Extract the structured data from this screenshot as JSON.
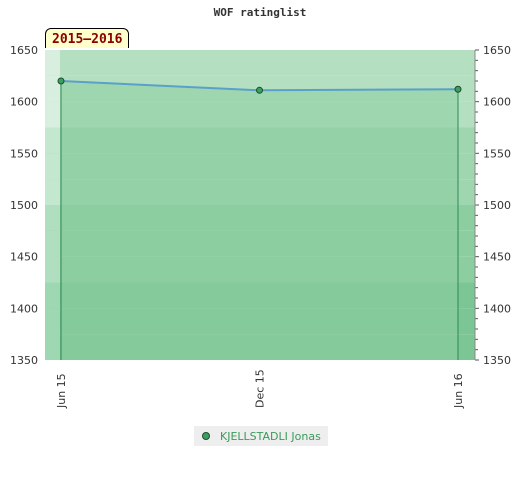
{
  "chart_data": {
    "type": "area",
    "title": "WOF ratinglist",
    "period_label": "2015–2016",
    "x_tick_labels": [
      "Jun 15",
      "Dec 15",
      "Jun 16"
    ],
    "y_ticks": [
      1350,
      1400,
      1450,
      1500,
      1550,
      1600,
      1650
    ],
    "ylim": [
      1350,
      1650
    ],
    "grid": true,
    "legend_position": "bottom",
    "series": [
      {
        "name": "KJELLSTADLI Jonas",
        "points": [
          {
            "x": "Jun 15",
            "y": 1620
          },
          {
            "x": "Dec 15",
            "y": 1611
          },
          {
            "x": "Jun 16",
            "y": 1612
          }
        ]
      }
    ],
    "colors": {
      "line": "#5aa0c8",
      "marker": "#3aa060",
      "area": "#8dcea0"
    }
  }
}
